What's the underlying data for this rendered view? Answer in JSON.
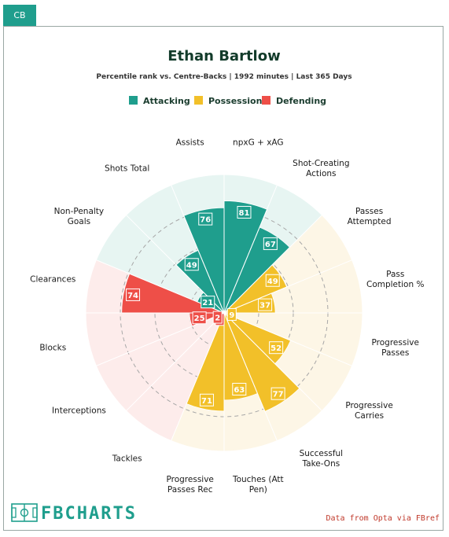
{
  "badge": "CB",
  "brand_text": "FBCHARTS",
  "credit": "Data from Opta via FBref",
  "colors": {
    "Attacking": "#1f9e8d",
    "Possession": "#f2c029",
    "Defending": "#ee4f48"
  },
  "chart_data": {
    "type": "polar-bar",
    "title": "Ethan Bartlow",
    "subtitle": "Percentile rank vs. Centre-Backs | 1992 minutes | Last 365 Days",
    "rmax": 100,
    "grid": true,
    "legend": [
      {
        "name": "Attacking"
      },
      {
        "name": "Possession"
      },
      {
        "name": "Defending"
      }
    ],
    "categories": [
      {
        "label": "npxG + xAG",
        "group": "Attacking",
        "value": 81
      },
      {
        "label": "Shot-Creating Actions",
        "group": "Attacking",
        "value": 67
      },
      {
        "label": "Passes Attempted",
        "group": "Possession",
        "value": 49
      },
      {
        "label": "Pass Completion %",
        "group": "Possession",
        "value": 37
      },
      {
        "label": "Progressive Passes",
        "group": "Possession",
        "value": 9
      },
      {
        "label": "Progressive Carries",
        "group": "Possession",
        "value": 52
      },
      {
        "label": "Successful Take-Ons",
        "group": "Possession",
        "value": 77
      },
      {
        "label": "Touches (Att Pen)",
        "group": "Possession",
        "value": 63
      },
      {
        "label": "Progressive Passes Rec",
        "group": "Possession",
        "value": 71
      },
      {
        "label": "Tackles",
        "group": "Defending",
        "value": 4
      },
      {
        "label": "Interceptions",
        "group": "Defending",
        "value": 2
      },
      {
        "label": "Blocks",
        "group": "Defending",
        "value": 25
      },
      {
        "label": "Clearances",
        "group": "Defending",
        "value": 74
      },
      {
        "label": "Non-Penalty Goals",
        "group": "Attacking",
        "value": 21
      },
      {
        "label": "Shots Total",
        "group": "Attacking",
        "value": 49
      },
      {
        "label": "Assists",
        "group": "Attacking",
        "value": 76
      }
    ]
  }
}
